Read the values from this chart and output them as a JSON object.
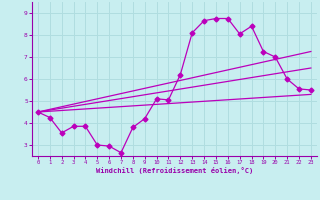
{
  "xlabel": "Windchill (Refroidissement éolien,°C)",
  "bg_color": "#c8eef0",
  "grid_color": "#b0dde0",
  "line_color": "#bb00bb",
  "xlim": [
    -0.5,
    23.5
  ],
  "ylim": [
    2.5,
    9.5
  ],
  "xticks": [
    0,
    1,
    2,
    3,
    4,
    5,
    6,
    7,
    8,
    9,
    10,
    11,
    12,
    13,
    14,
    15,
    16,
    17,
    18,
    19,
    20,
    21,
    22,
    23
  ],
  "yticks": [
    3,
    4,
    5,
    6,
    7,
    8,
    9
  ],
  "series1_x": [
    0,
    1,
    2,
    3,
    4,
    5,
    6,
    7,
    8,
    9,
    10,
    11,
    12,
    13,
    14,
    15,
    16,
    17,
    18,
    19,
    20,
    21,
    22,
    23
  ],
  "series1_y": [
    4.5,
    4.25,
    3.55,
    3.85,
    3.85,
    3.0,
    2.95,
    2.65,
    3.8,
    4.2,
    5.1,
    5.05,
    6.2,
    8.1,
    8.65,
    8.75,
    8.75,
    8.05,
    8.4,
    7.25,
    7.0,
    6.0,
    5.55,
    5.5
  ],
  "series2_x": [
    0,
    23
  ],
  "series2_y": [
    4.5,
    7.25
  ],
  "series3_x": [
    0,
    23
  ],
  "series3_y": [
    4.5,
    6.5
  ],
  "series4_x": [
    0,
    23
  ],
  "series4_y": [
    4.5,
    5.3
  ]
}
